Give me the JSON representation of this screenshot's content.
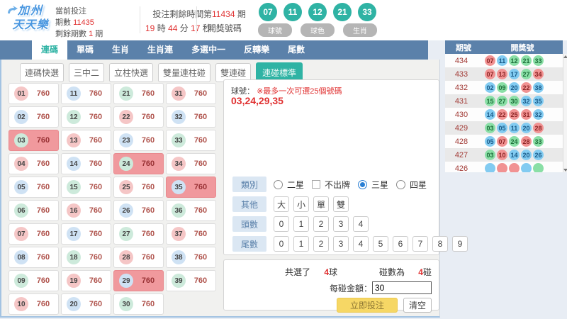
{
  "colors": {
    "navy": "#5b81aa",
    "teal": "#2fb3a4",
    "red": "#e03131",
    "odds": "#b0544d",
    "sel": "#f0999d",
    "ball_r": "#f5c6c6",
    "ball_b": "#cfe2f4",
    "ball_g": "#cdeadb",
    "sball_r": "#f19292",
    "sball_b": "#82cbf1",
    "sball_g": "#8adfa6",
    "label_bg": "#dbe7f3",
    "yellow": "#f6d765"
  },
  "header": {
    "logo": {
      "line1": "加州",
      "line2": "天天樂"
    },
    "bet_info": {
      "label": "當前投注",
      "period_label": "期數",
      "period": "11435",
      "remain_label": "剩餘期數",
      "remain": "1",
      "remain_unit": "期"
    },
    "countdown": {
      "label": "投注剩餘時間",
      "h": "19",
      "h_unit": "時",
      "m": "44",
      "m_unit": "分",
      "s": "17",
      "s_unit": "秒"
    },
    "draw": {
      "prefix": "第",
      "period": "11434",
      "suffix": "期",
      "label": "開獎號碼",
      "balls": [
        "07",
        "11",
        "12",
        "21",
        "33"
      ]
    },
    "mode_buttons": [
      "球號",
      "球色",
      "生肖"
    ]
  },
  "nav": {
    "tabs": [
      {
        "label": "連碼",
        "active": true
      },
      {
        "label": "單碼",
        "active": false
      },
      {
        "label": "生肖",
        "active": false
      },
      {
        "label": "生肖連",
        "active": false
      },
      {
        "label": "多選中一",
        "active": false
      },
      {
        "label": "反轉樂",
        "active": false
      },
      {
        "label": "尾數",
        "active": false
      }
    ]
  },
  "subnav": {
    "buttons": [
      {
        "label": "連碼快選",
        "active": false
      },
      {
        "label": "三中二",
        "active": false
      },
      {
        "label": "立柱快選",
        "active": false
      },
      {
        "label": "雙量連柱碰",
        "active": false
      },
      {
        "label": "雙連碰",
        "active": false
      },
      {
        "label": "連碰標準",
        "active": true
      }
    ]
  },
  "grid": {
    "odds": "760",
    "numbers": [
      "01",
      "02",
      "03",
      "04",
      "05",
      "06",
      "07",
      "08",
      "09",
      "10",
      "11",
      "12",
      "13",
      "14",
      "15",
      "16",
      "17",
      "18",
      "19",
      "20",
      "21",
      "22",
      "23",
      "24",
      "25",
      "26",
      "27",
      "28",
      "29",
      "30",
      "31",
      "32",
      "33",
      "34",
      "35",
      "36",
      "37",
      "38",
      "39"
    ],
    "selected": [
      "03",
      "24",
      "29",
      "35"
    ]
  },
  "panel": {
    "note_prefix": "球號：",
    "note": "※最多一次可選25個號碼",
    "selection": "03,24,29,35",
    "category": {
      "label": "類別",
      "options": [
        {
          "kind": "radio",
          "label": "二星",
          "checked": false
        },
        {
          "kind": "checkbox",
          "label": "不出牌",
          "checked": false
        },
        {
          "kind": "radio",
          "label": "三星",
          "checked": true
        },
        {
          "kind": "radio",
          "label": "四星",
          "checked": false
        }
      ]
    },
    "other": {
      "label": "其他",
      "buttons": [
        "大",
        "小",
        "單",
        "雙"
      ]
    },
    "head": {
      "label": "頭數",
      "buttons": [
        "0",
        "1",
        "2",
        "3",
        "4"
      ]
    },
    "tail": {
      "label": "尾數",
      "buttons": [
        "0",
        "1",
        "2",
        "3",
        "4",
        "5",
        "6",
        "7",
        "8",
        "9"
      ]
    },
    "summary": {
      "picked_label": "共選了",
      "picked_value": "4",
      "picked_unit": "球",
      "combo_label": "碰數為",
      "combo_value": "4",
      "combo_unit": "碰",
      "amount_label": "每碰金額：",
      "amount_value": "30",
      "bet_button": "立即投注",
      "clear_button": "清空"
    }
  },
  "sidebar": {
    "header": {
      "period": "期號",
      "numbers": "開獎號"
    },
    "rows": [
      {
        "period": "434",
        "balls": [
          {
            "n": "07"
          },
          {
            "n": "11"
          },
          {
            "n": "12"
          },
          {
            "n": "21"
          },
          {
            "n": "33"
          }
        ]
      },
      {
        "period": "433",
        "balls": [
          {
            "n": "07"
          },
          {
            "n": "13"
          },
          {
            "n": "17"
          },
          {
            "n": "27"
          },
          {
            "n": "34"
          }
        ]
      },
      {
        "period": "432",
        "balls": [
          {
            "n": "02"
          },
          {
            "n": "09"
          },
          {
            "n": "20"
          },
          {
            "n": "22"
          },
          {
            "n": "38"
          }
        ]
      },
      {
        "period": "431",
        "balls": [
          {
            "n": "15"
          },
          {
            "n": "27"
          },
          {
            "n": "30"
          },
          {
            "n": "32"
          },
          {
            "n": "35"
          }
        ]
      },
      {
        "period": "430",
        "balls": [
          {
            "n": "14"
          },
          {
            "n": "22"
          },
          {
            "n": "25"
          },
          {
            "n": "31"
          },
          {
            "n": "32"
          }
        ]
      },
      {
        "period": "429",
        "balls": [
          {
            "n": "03"
          },
          {
            "n": "05"
          },
          {
            "n": "11"
          },
          {
            "n": "20"
          },
          {
            "n": "28"
          }
        ]
      },
      {
        "period": "428",
        "balls": [
          {
            "n": "05"
          },
          {
            "n": "07"
          },
          {
            "n": "24"
          },
          {
            "n": "28"
          },
          {
            "n": "33"
          }
        ]
      },
      {
        "period": "427",
        "balls": [
          {
            "n": "03"
          },
          {
            "n": "10"
          },
          {
            "n": "14"
          },
          {
            "n": "20"
          },
          {
            "n": "26"
          }
        ]
      },
      {
        "period": "426",
        "balls": [
          {
            "n": "",
            "c": "b"
          },
          {
            "n": "",
            "c": "r"
          },
          {
            "n": "",
            "c": "r"
          },
          {
            "n": "",
            "c": "b"
          },
          {
            "n": "",
            "c": "g"
          }
        ]
      }
    ]
  }
}
